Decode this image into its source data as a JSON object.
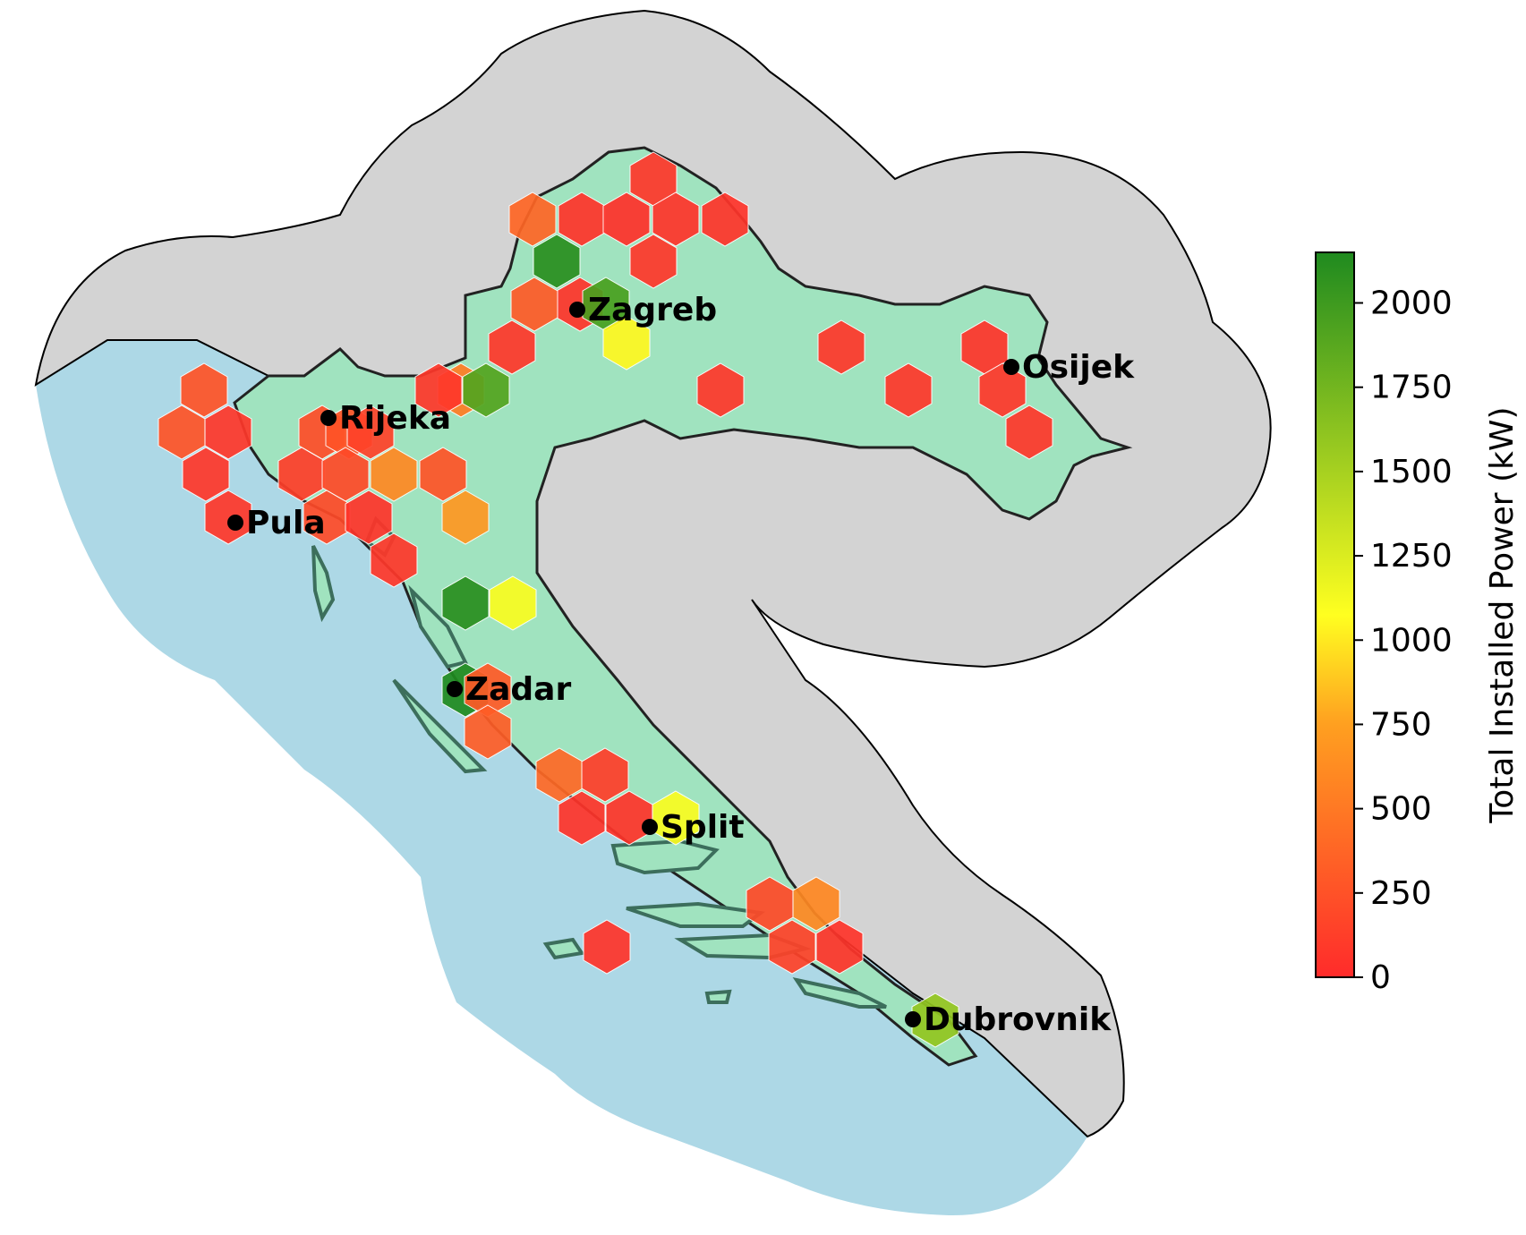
{
  "colorbar": {
    "label": "Total Installed Power (kW)",
    "min": 0,
    "max": 2150,
    "ticks": [
      0,
      250,
      500,
      750,
      1000,
      1250,
      1500,
      1750,
      2000
    ],
    "tick_labels": [
      "0",
      "250",
      "500",
      "750",
      "1000",
      "1250",
      "1500",
      "1750",
      "2000"
    ],
    "colors": [
      "#ff2b2b",
      "#ffa020",
      "#ffff20",
      "#1f8a1f"
    ]
  },
  "colors": {
    "sea": "#add8e6",
    "land_neighbor": "#d3d3d3",
    "land_croatia": "#a0e3bf",
    "border": "#000000"
  },
  "cities": [
    {
      "name": "Zagreb"
    },
    {
      "name": "Osijek"
    },
    {
      "name": "Rijeka"
    },
    {
      "name": "Pula"
    },
    {
      "name": "Zadar"
    },
    {
      "name": "Split"
    },
    {
      "name": "Dubrovnik"
    }
  ],
  "installed_power_kw": [
    80,
    380,
    60,
    40,
    60,
    60,
    80,
    2100,
    60,
    1950,
    1050,
    300,
    80,
    520,
    1900,
    80,
    80,
    60,
    80,
    80,
    80,
    80,
    260,
    260,
    80,
    80,
    220,
    260,
    150,
    120,
    600,
    260,
    80,
    200,
    200,
    60,
    80,
    700,
    2100,
    1100,
    2150,
    300,
    320,
    400,
    120,
    60,
    60,
    1100,
    200,
    600,
    150,
    60,
    60,
    1600
  ]
}
